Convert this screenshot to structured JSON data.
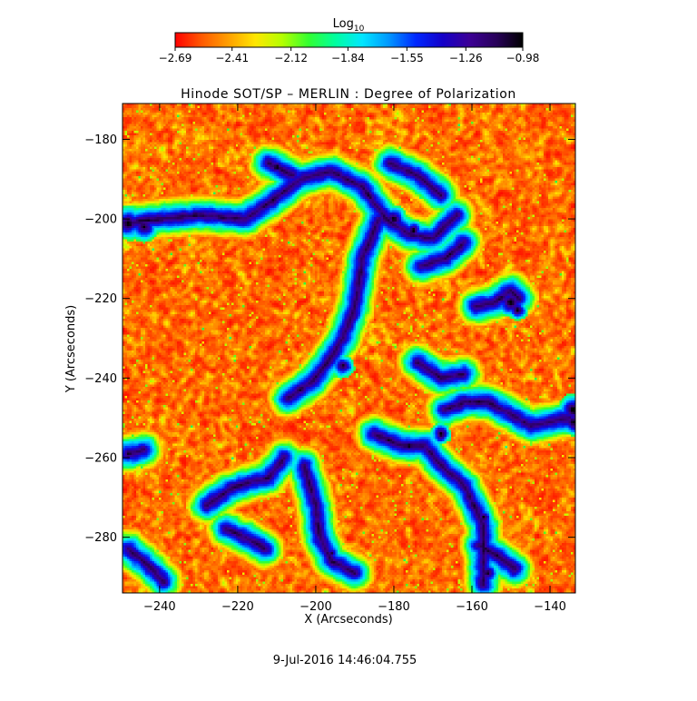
{
  "chart_data": {
    "type": "heatmap",
    "title": "Hinode SOT/SP – MERLIN : Degree of Polarization",
    "xlabel": "X (Arcseconds)",
    "ylabel": "Y (Arcseconds)",
    "xlim": [
      -249.5,
      -133.5
    ],
    "ylim": [
      -294,
      -171
    ],
    "x_ticks": [
      -240,
      -220,
      -200,
      -180,
      -160,
      -140
    ],
    "y_ticks": [
      -280,
      -260,
      -240,
      -220,
      -200,
      -180
    ],
    "x_tick_labels": [
      "−240",
      "−220",
      "−200",
      "−180",
      "−160",
      "−140"
    ],
    "y_tick_labels": [
      "−280",
      "−260",
      "−240",
      "−220",
      "−200",
      "−180"
    ],
    "colorbar": {
      "label_base": "Log",
      "label_sub": "10",
      "scale": "log10",
      "range": [
        -2.69,
        -0.98
      ],
      "ticks": [
        -2.69,
        -2.41,
        -2.12,
        -1.84,
        -1.55,
        -1.26,
        -0.98
      ],
      "tick_labels": [
        "−2.69",
        "−2.41",
        "−2.12",
        "−1.84",
        "−1.55",
        "−1.26",
        "−0.98"
      ],
      "colormap": [
        "#ff0000",
        "#ff5a00",
        "#ffa000",
        "#ffe600",
        "#b4ff00",
        "#32ff32",
        "#00ffa0",
        "#00e6ff",
        "#0096ff",
        "#0028ff",
        "#1400c8",
        "#3c0096",
        "#28005a",
        "#000000"
      ]
    },
    "network_lanes": [
      [
        [
          -249,
          -201
        ],
        [
          -240,
          -200
        ],
        [
          -230,
          -199
        ],
        [
          -218,
          -200
        ],
        [
          -212,
          -196
        ],
        [
          -204,
          -190
        ],
        [
          -196,
          -188
        ],
        [
          -188,
          -192
        ],
        [
          -182,
          -200
        ],
        [
          -176,
          -204
        ],
        [
          -170,
          -205
        ],
        [
          -164,
          -199
        ]
      ],
      [
        [
          -212,
          -186
        ],
        [
          -206,
          -189
        ]
      ],
      [
        [
          -184,
          -200
        ],
        [
          -188,
          -210
        ],
        [
          -190,
          -222
        ],
        [
          -193,
          -230
        ],
        [
          -197,
          -236
        ],
        [
          -201,
          -241
        ],
        [
          -207,
          -245
        ]
      ],
      [
        [
          -185,
          -254
        ],
        [
          -178,
          -257
        ],
        [
          -172,
          -257
        ],
        [
          -168,
          -262
        ],
        [
          -162,
          -267
        ],
        [
          -157,
          -277
        ],
        [
          -157,
          -292
        ]
      ],
      [
        [
          -167,
          -248
        ],
        [
          -162,
          -246
        ],
        [
          -156,
          -246
        ],
        [
          -150,
          -249
        ],
        [
          -145,
          -252
        ],
        [
          -135,
          -250
        ]
      ],
      [
        [
          -159,
          -222
        ],
        [
          -154,
          -221
        ],
        [
          -150,
          -218
        ],
        [
          -148,
          -220
        ]
      ],
      [
        [
          -158,
          -282
        ],
        [
          -153,
          -285
        ],
        [
          -149,
          -288
        ]
      ],
      [
        [
          -203,
          -262
        ],
        [
          -200,
          -272
        ],
        [
          -199,
          -280
        ],
        [
          -196,
          -286
        ],
        [
          -190,
          -289
        ]
      ],
      [
        [
          -228,
          -272
        ],
        [
          -222,
          -268
        ],
        [
          -216,
          -266
        ],
        [
          -212,
          -265
        ],
        [
          -208,
          -260
        ]
      ],
      [
        [
          -248,
          -283
        ],
        [
          -243,
          -287
        ],
        [
          -239,
          -291
        ]
      ],
      [
        [
          -174,
          -236
        ],
        [
          -168,
          -240
        ],
        [
          -162,
          -239
        ]
      ],
      [
        [
          -173,
          -212
        ],
        [
          -167,
          -210
        ],
        [
          -162,
          -206
        ]
      ],
      [
        [
          -181,
          -186
        ],
        [
          -174,
          -189
        ],
        [
          -168,
          -194
        ]
      ],
      [
        [
          -223,
          -278
        ],
        [
          -218,
          -280
        ],
        [
          -213,
          -283
        ]
      ],
      [
        [
          -248,
          -259
        ],
        [
          -244,
          -258
        ]
      ]
    ],
    "network_spots": [
      [
        -248,
        -201,
        4.5,
        -1.05
      ],
      [
        -244,
        -202,
        4.0,
        -1.1
      ],
      [
        -231,
        -199,
        3.0,
        -1.12
      ],
      [
        -210,
        -187,
        2.6,
        -1.0
      ],
      [
        -180,
        -200,
        3.5,
        -1.12
      ],
      [
        -175,
        -203,
        3.0,
        -1.08
      ],
      [
        -193,
        -237,
        3.0,
        -1.1
      ],
      [
        -150,
        -221,
        3.8,
        -1.05
      ],
      [
        -148,
        -223,
        2.6,
        -1.0
      ],
      [
        -168,
        -254,
        2.8,
        -1.08
      ],
      [
        -176,
        -257,
        2.8,
        -1.1
      ],
      [
        -134,
        -248,
        4.0,
        -1.02
      ],
      [
        -134,
        -251,
        3.5,
        -1.05
      ],
      [
        -156,
        -289,
        3.0,
        -1.02
      ],
      [
        -157,
        -275,
        2.5,
        -1.1
      ],
      [
        -196,
        -284,
        2.2,
        -1.12
      ],
      [
        -246,
        -284,
        2.2,
        -1.15
      ]
    ],
    "timestamp": "9-Jul-2016 14:46:04.755"
  }
}
